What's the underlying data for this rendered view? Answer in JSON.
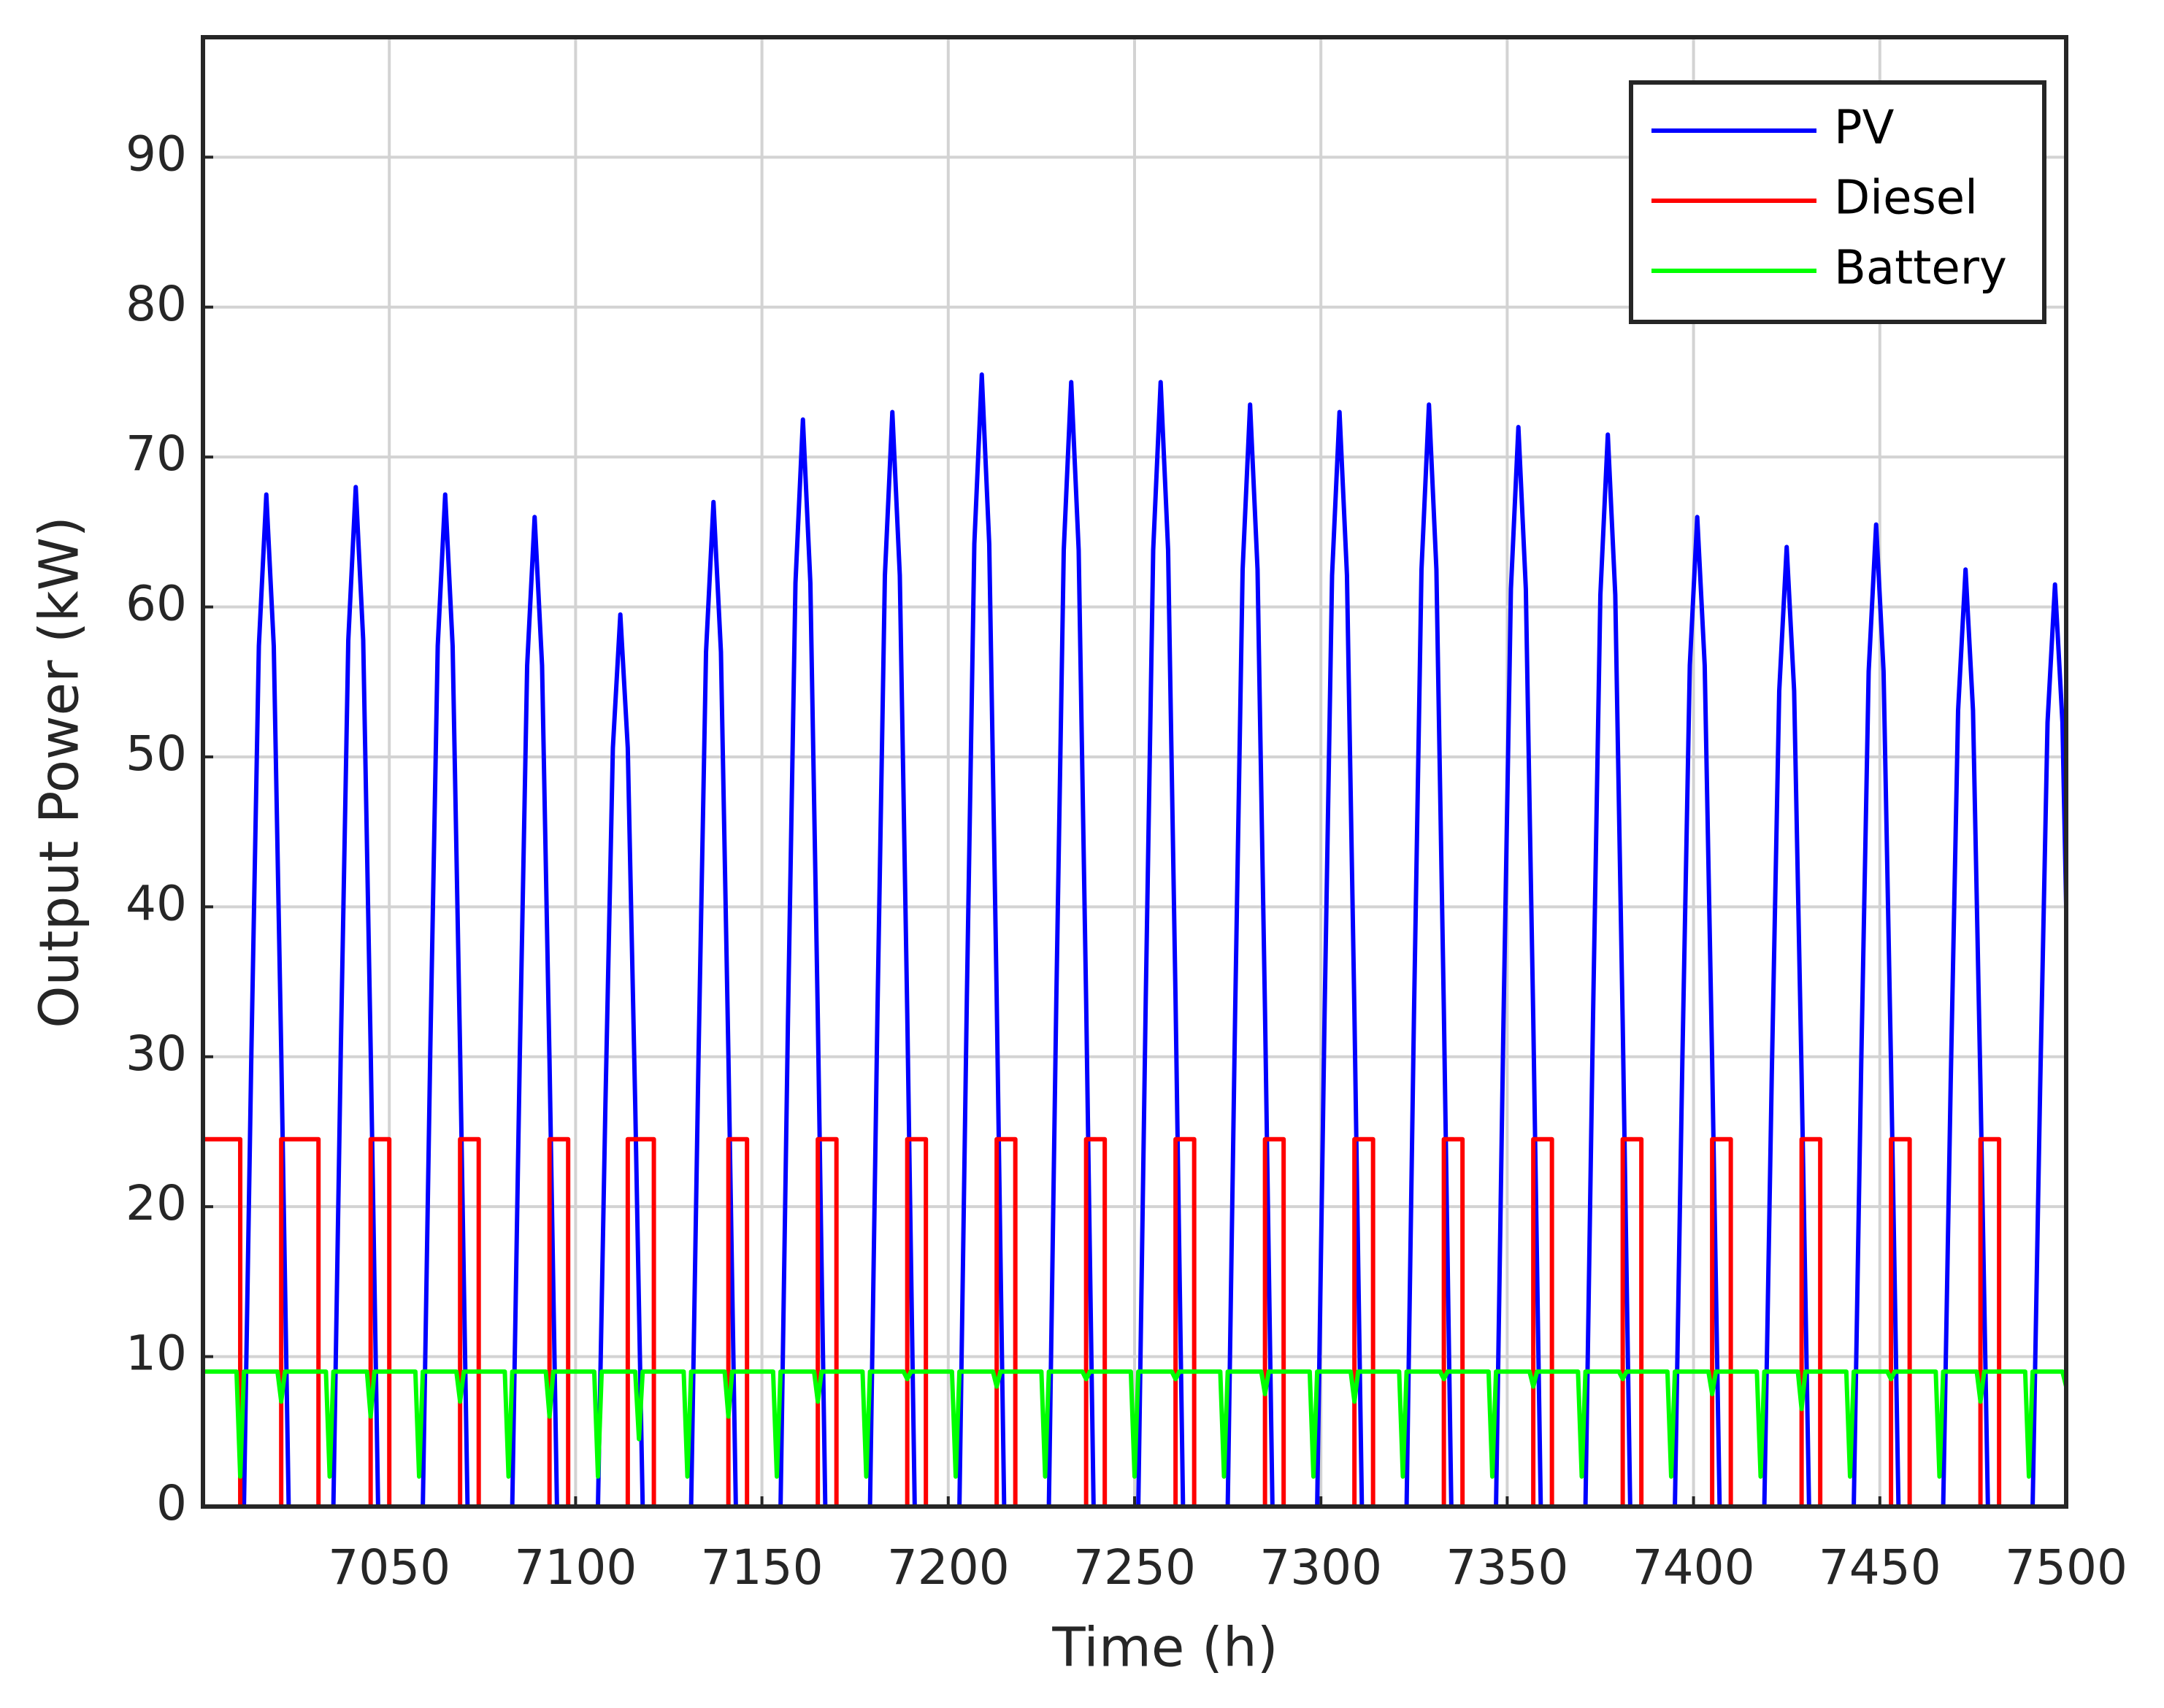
{
  "chart_data": {
    "type": "line",
    "xlabel": "Time (h)",
    "ylabel": "Output Power (kW)",
    "xlim": [
      7000,
      7500
    ],
    "ylim": [
      0,
      98
    ],
    "xticks": [
      7050,
      7100,
      7150,
      7200,
      7250,
      7300,
      7350,
      7400,
      7450,
      7500
    ],
    "yticks": [
      0,
      10,
      20,
      30,
      40,
      50,
      60,
      70,
      80,
      90
    ],
    "grid": true,
    "legend": "upper right",
    "series": [
      {
        "name": "PV",
        "color": "#0000ff",
        "x": [
          7000,
          7011,
          7013,
          7015,
          7017,
          7019,
          7021,
          7023,
          7035,
          7037,
          7039,
          7041,
          7043,
          7045,
          7047,
          7059,
          7061,
          7063,
          7065,
          7067,
          7069,
          7071,
          7083,
          7085,
          7087,
          7089,
          7091,
          7093,
          7095,
          7106,
          7108,
          7110,
          7112,
          7114,
          7116,
          7118,
          7131,
          7133,
          7135,
          7137,
          7139,
          7141,
          7143,
          7155,
          7157,
          7159,
          7161,
          7163,
          7165,
          7167,
          7179,
          7181,
          7183,
          7185,
          7187,
          7189,
          7191,
          7203,
          7205,
          7207,
          7209,
          7211,
          7213,
          7215,
          7227,
          7229,
          7231,
          7233,
          7235,
          7237,
          7239,
          7251,
          7253,
          7255,
          7257,
          7259,
          7261,
          7263,
          7275,
          7277,
          7279,
          7281,
          7283,
          7285,
          7287,
          7299,
          7301,
          7303,
          7305,
          7307,
          7309,
          7311,
          7323,
          7325,
          7327,
          7329,
          7331,
          7333,
          7335,
          7347,
          7349,
          7351,
          7353,
          7355,
          7357,
          7359,
          7371,
          7373,
          7375,
          7377,
          7379,
          7381,
          7383,
          7395,
          7397,
          7399,
          7401,
          7403,
          7405,
          7407,
          7419,
          7421,
          7423,
          7425,
          7427,
          7429,
          7431,
          7443,
          7445,
          7447,
          7449,
          7451,
          7453,
          7455,
          7467,
          7469,
          7471,
          7473,
          7475,
          7477,
          7479,
          7491,
          7493,
          7495,
          7497,
          7499,
          7500
        ],
        "values": [
          0,
          0,
          30.4,
          57.4,
          67.5,
          57.4,
          30.4,
          0,
          0,
          30.6,
          57.8,
          68,
          57.8,
          30.6,
          0,
          0,
          30.4,
          57.4,
          67.5,
          57.4,
          30.4,
          0,
          0,
          29.7,
          56.1,
          66,
          56.1,
          29.7,
          0,
          0,
          26.8,
          50.6,
          59.5,
          50.6,
          26.8,
          0,
          0,
          30.2,
          57,
          67,
          57,
          30.2,
          0,
          0,
          32.6,
          61.6,
          72.5,
          61.6,
          32.6,
          0,
          0,
          32.9,
          62.1,
          73,
          62.1,
          32.9,
          0,
          0,
          34,
          64.2,
          75.5,
          64.2,
          34,
          0,
          0,
          33.8,
          63.8,
          75,
          63.8,
          33.8,
          0,
          0,
          33.8,
          63.8,
          75,
          63.8,
          33.8,
          0,
          0,
          33.1,
          62.5,
          73.5,
          62.5,
          33.1,
          0,
          0,
          32.9,
          62.1,
          73,
          62.1,
          32.9,
          0,
          0,
          33.1,
          62.5,
          73.5,
          62.5,
          33.1,
          0,
          0,
          32.4,
          61.2,
          72,
          61.2,
          32.4,
          0,
          0,
          32.2,
          60.8,
          71.5,
          60.8,
          32.2,
          0,
          0,
          29.7,
          56.1,
          66,
          56.1,
          29.7,
          0,
          0,
          28.8,
          54.4,
          64,
          54.4,
          28.8,
          0,
          0,
          29.5,
          55.7,
          65.5,
          55.7,
          29.5,
          0,
          0,
          28.1,
          53.1,
          62.5,
          53.1,
          28.1,
          0,
          0,
          27.7,
          52.3,
          61.5,
          52.3,
          40
        ]
      },
      {
        "name": "Diesel",
        "color": "#ff0000",
        "x": [
          7000,
          7010,
          7010,
          7021,
          7021,
          7031,
          7031,
          7045,
          7045,
          7050,
          7050,
          7069,
          7069,
          7074,
          7074,
          7093,
          7093,
          7098,
          7098,
          7114,
          7114,
          7121,
          7121,
          7141,
          7141,
          7146,
          7146,
          7165,
          7165,
          7170,
          7170,
          7189,
          7189,
          7194,
          7194,
          7213,
          7213,
          7218,
          7218,
          7237,
          7237,
          7242,
          7242,
          7261,
          7261,
          7266,
          7266,
          7285,
          7285,
          7290,
          7290,
          7309,
          7309,
          7314,
          7314,
          7333,
          7333,
          7338,
          7338,
          7357,
          7357,
          7362,
          7362,
          7381,
          7381,
          7386,
          7386,
          7405,
          7405,
          7410,
          7410,
          7429,
          7429,
          7434,
          7434,
          7453,
          7453,
          7458,
          7458,
          7477,
          7477,
          7482,
          7482,
          7500
        ],
        "values": [
          24.5,
          24.5,
          0,
          0,
          24.5,
          24.5,
          0,
          0,
          24.5,
          24.5,
          0,
          0,
          24.5,
          24.5,
          0,
          0,
          24.5,
          24.5,
          0,
          0,
          24.5,
          24.5,
          0,
          0,
          24.5,
          24.5,
          0,
          0,
          24.5,
          24.5,
          0,
          0,
          24.5,
          24.5,
          0,
          0,
          24.5,
          24.5,
          0,
          0,
          24.5,
          24.5,
          0,
          0,
          24.5,
          24.5,
          0,
          0,
          24.5,
          24.5,
          0,
          0,
          24.5,
          24.5,
          0,
          0,
          24.5,
          24.5,
          0,
          0,
          24.5,
          24.5,
          0,
          0,
          24.5,
          24.5,
          0,
          0,
          24.5,
          24.5,
          0,
          0,
          24.5,
          24.5,
          0,
          0,
          24.5,
          24.5,
          0,
          0,
          24.5,
          24.5,
          0,
          0
        ]
      },
      {
        "name": "Battery",
        "color": "#00ff00",
        "x": [
          7000,
          7009,
          7010,
          7011,
          7020,
          7021,
          7022,
          7033,
          7034,
          7035,
          7044,
          7045,
          7046,
          7057,
          7058,
          7059,
          7068,
          7069,
          7070,
          7081,
          7082,
          7083,
          7092,
          7093,
          7094,
          7105,
          7106,
          7107,
          7116,
          7117,
          7118,
          7129,
          7130,
          7131,
          7140,
          7141,
          7142,
          7153,
          7154,
          7155,
          7164,
          7165,
          7166,
          7177,
          7178,
          7179,
          7188,
          7189,
          7190,
          7201,
          7202,
          7203,
          7212,
          7213,
          7214,
          7225,
          7226,
          7227,
          7236,
          7237,
          7238,
          7249,
          7250,
          7251,
          7260,
          7261,
          7262,
          7273,
          7274,
          7275,
          7284,
          7285,
          7286,
          7297,
          7298,
          7299,
          7308,
          7309,
          7310,
          7321,
          7322,
          7323,
          7332,
          7333,
          7334,
          7345,
          7346,
          7347,
          7356,
          7357,
          7358,
          7369,
          7370,
          7371,
          7380,
          7381,
          7382,
          7393,
          7394,
          7395,
          7404,
          7405,
          7406,
          7417,
          7418,
          7419,
          7428,
          7429,
          7430,
          7441,
          7442,
          7443,
          7452,
          7453,
          7454,
          7465,
          7466,
          7467,
          7476,
          7477,
          7478,
          7489,
          7490,
          7491,
          7499,
          7500
        ],
        "values": [
          9,
          9,
          2,
          9,
          9,
          7,
          9,
          9,
          2,
          9,
          9,
          6,
          9,
          9,
          2,
          9,
          9,
          7,
          9,
          9,
          2,
          9,
          9,
          6,
          9,
          9,
          2,
          9,
          9,
          4.5,
          9,
          9,
          2,
          9,
          9,
          6,
          9,
          9,
          2,
          9,
          9,
          7,
          9,
          9,
          2,
          9,
          9,
          8.5,
          9,
          9,
          2,
          9,
          9,
          8,
          9,
          9,
          2,
          9,
          9,
          8.5,
          9,
          9,
          2,
          9,
          9,
          8.5,
          9,
          9,
          2,
          9,
          9,
          7.5,
          9,
          9,
          2,
          9,
          9,
          7,
          9,
          9,
          2,
          9,
          9,
          8.5,
          9,
          9,
          2,
          9,
          9,
          8,
          9,
          9,
          2,
          9,
          9,
          8.5,
          9,
          9,
          2,
          9,
          9,
          7.5,
          9,
          9,
          2,
          9,
          9,
          6.5,
          9,
          9,
          2,
          9,
          9,
          8.5,
          9,
          9,
          2,
          9,
          9,
          7,
          9,
          9,
          2,
          9,
          9,
          8
        ]
      }
    ]
  }
}
